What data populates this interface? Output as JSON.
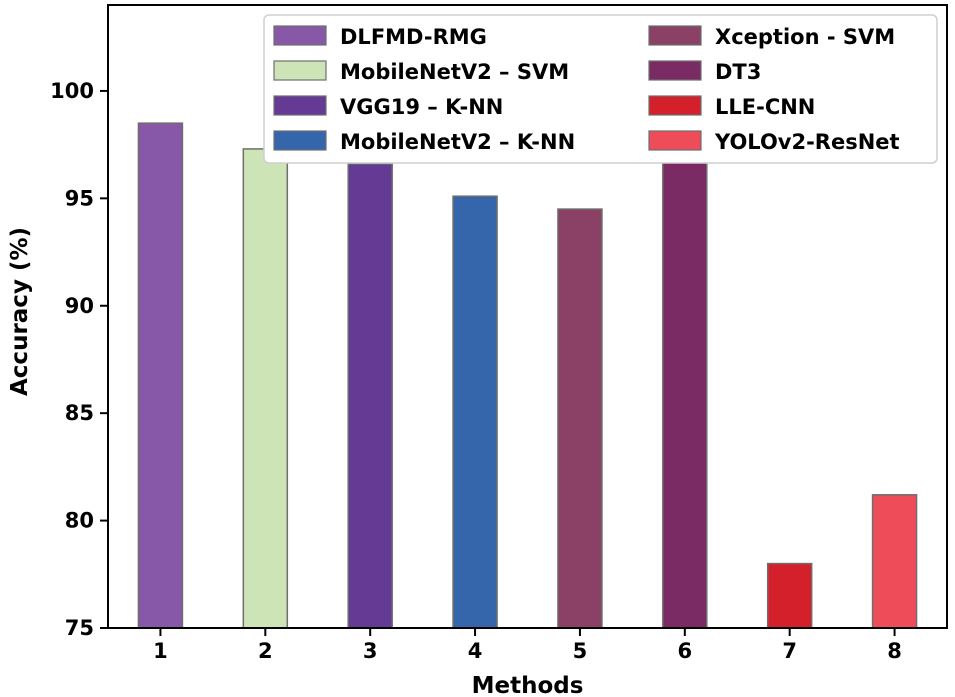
{
  "chart_data": {
    "type": "bar",
    "xlabel": "Methods",
    "ylabel": "Accuracy (%)",
    "categories": [
      "1",
      "2",
      "3",
      "4",
      "5",
      "6",
      "7",
      "8"
    ],
    "ylim": [
      75,
      104
    ],
    "yticks": [
      75,
      80,
      85,
      90,
      95,
      100
    ],
    "legend_position": "top-right",
    "legend_columns": 2,
    "series": [
      {
        "name": "DLFMD-RMG",
        "color": "#8757a8",
        "values": [
          98.5,
          null,
          null,
          null,
          null,
          null,
          null,
          null
        ]
      },
      {
        "name": "MobileNetV2 – SVM",
        "color": "#cde5b6",
        "values": [
          null,
          97.3,
          null,
          null,
          null,
          null,
          null,
          null
        ]
      },
      {
        "name": "VGG19 – K-NN",
        "color": "#643a95",
        "values": [
          null,
          null,
          96.6,
          null,
          null,
          null,
          null,
          null
        ]
      },
      {
        "name": "MobileNetV2 – K-NN",
        "color": "#3566ab",
        "values": [
          null,
          null,
          null,
          95.1,
          null,
          null,
          null,
          null
        ]
      },
      {
        "name": "Xception - SVM",
        "color": "#8a4165",
        "values": [
          null,
          null,
          null,
          null,
          94.5,
          null,
          null,
          null
        ]
      },
      {
        "name": "DT3",
        "color": "#7a2b63",
        "values": [
          null,
          null,
          null,
          null,
          null,
          96.9,
          null,
          null
        ]
      },
      {
        "name": "LLE-CNN",
        "color": "#d4202b",
        "values": [
          null,
          null,
          null,
          null,
          null,
          null,
          78.0,
          null
        ]
      },
      {
        "name": "YOLOv2-ResNet",
        "color": "#ee4c58",
        "values": [
          null,
          null,
          null,
          null,
          null,
          null,
          null,
          81.2
        ]
      }
    ]
  }
}
